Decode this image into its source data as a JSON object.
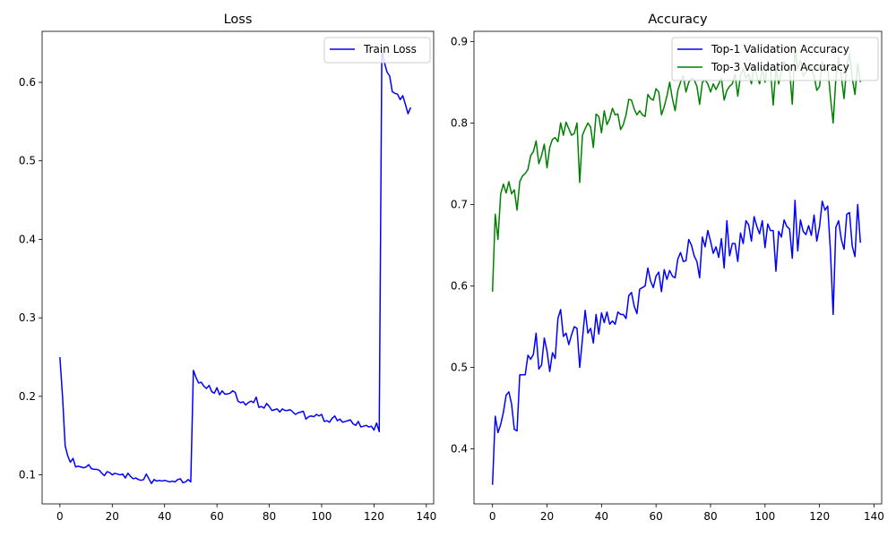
{
  "chart_data": [
    {
      "type": "line",
      "title": "Loss",
      "xlabel": "",
      "ylabel": "",
      "xlim": [
        -6.8,
        142.8
      ],
      "ylim": [
        0.063,
        0.665
      ],
      "xticks": [
        0,
        20,
        40,
        60,
        80,
        100,
        120,
        140
      ],
      "xtick_labels": [
        "0",
        "20",
        "40",
        "60",
        "80",
        "100",
        "120",
        "140"
      ],
      "yticks": [
        0.1,
        0.2,
        0.3,
        0.4,
        0.5,
        0.6
      ],
      "ytick_labels": [
        "0.1",
        "0.2",
        "0.3",
        "0.4",
        "0.5",
        "0.6"
      ],
      "grid": false,
      "legend_placement": "top-right",
      "series": [
        {
          "name": "Train Loss",
          "color": "#0000ff",
          "values": [
            0.25,
            0.2,
            0.137,
            0.124,
            0.116,
            0.121,
            0.11,
            0.111,
            0.11,
            0.109,
            0.11,
            0.113,
            0.108,
            0.107,
            0.107,
            0.106,
            0.102,
            0.099,
            0.104,
            0.103,
            0.1,
            0.102,
            0.101,
            0.1,
            0.101,
            0.096,
            0.102,
            0.098,
            0.095,
            0.096,
            0.094,
            0.093,
            0.094,
            0.101,
            0.095,
            0.089,
            0.094,
            0.092,
            0.093,
            0.092,
            0.093,
            0.092,
            0.091,
            0.092,
            0.091,
            0.094,
            0.095,
            0.09,
            0.091,
            0.094,
            0.091,
            0.233,
            0.224,
            0.217,
            0.218,
            0.213,
            0.21,
            0.214,
            0.206,
            0.204,
            0.211,
            0.202,
            0.207,
            0.203,
            0.203,
            0.204,
            0.207,
            0.205,
            0.194,
            0.192,
            0.193,
            0.189,
            0.192,
            0.194,
            0.192,
            0.199,
            0.186,
            0.187,
            0.185,
            0.191,
            0.187,
            0.182,
            0.183,
            0.184,
            0.18,
            0.184,
            0.182,
            0.182,
            0.183,
            0.18,
            0.177,
            0.179,
            0.18,
            0.181,
            0.171,
            0.174,
            0.175,
            0.174,
            0.177,
            0.175,
            0.177,
            0.168,
            0.169,
            0.167,
            0.172,
            0.175,
            0.169,
            0.171,
            0.167,
            0.168,
            0.169,
            0.17,
            0.165,
            0.163,
            0.168,
            0.161,
            0.162,
            0.163,
            0.161,
            0.162,
            0.157,
            0.166,
            0.155,
            0.64,
            0.625,
            0.613,
            0.608,
            0.588,
            0.586,
            0.585,
            0.578,
            0.583,
            0.572,
            0.56,
            0.568
          ]
        }
      ]
    },
    {
      "type": "line",
      "title": "Accuracy",
      "xlabel": "",
      "ylabel": "",
      "xlim": [
        -6.8,
        142.8
      ],
      "ylim": [
        0.3325,
        0.9125
      ],
      "xticks": [
        0,
        20,
        40,
        60,
        80,
        100,
        120,
        140
      ],
      "xtick_labels": [
        "0",
        "20",
        "40",
        "60",
        "80",
        "100",
        "120",
        "140"
      ],
      "yticks": [
        0.4,
        0.5,
        0.6,
        0.7,
        0.8,
        0.9
      ],
      "ytick_labels": [
        "0.4",
        "0.5",
        "0.6",
        "0.7",
        "0.8",
        "0.9"
      ],
      "grid": false,
      "legend_placement": "top-right",
      "series": [
        {
          "name": "Top-1 Validation Accuracy",
          "color": "#0000ff",
          "values": [
            0.356,
            0.44,
            0.42,
            0.43,
            0.445,
            0.466,
            0.47,
            0.455,
            0.424,
            0.422,
            0.491,
            0.491,
            0.491,
            0.515,
            0.51,
            0.516,
            0.542,
            0.498,
            0.503,
            0.536,
            0.52,
            0.495,
            0.518,
            0.511,
            0.56,
            0.571,
            0.538,
            0.542,
            0.528,
            0.54,
            0.55,
            0.548,
            0.5,
            0.535,
            0.57,
            0.542,
            0.548,
            0.53,
            0.565,
            0.541,
            0.567,
            0.555,
            0.568,
            0.553,
            0.557,
            0.553,
            0.568,
            0.565,
            0.565,
            0.56,
            0.588,
            0.592,
            0.575,
            0.566,
            0.596,
            0.598,
            0.6,
            0.622,
            0.606,
            0.598,
            0.612,
            0.617,
            0.593,
            0.62,
            0.608,
            0.619,
            0.612,
            0.61,
            0.633,
            0.641,
            0.63,
            0.631,
            0.657,
            0.65,
            0.637,
            0.63,
            0.61,
            0.66,
            0.648,
            0.668,
            0.655,
            0.64,
            0.648,
            0.635,
            0.658,
            0.622,
            0.68,
            0.637,
            0.652,
            0.652,
            0.63,
            0.665,
            0.652,
            0.68,
            0.675,
            0.655,
            0.685,
            0.673,
            0.664,
            0.68,
            0.647,
            0.676,
            0.668,
            0.668,
            0.618,
            0.667,
            0.66,
            0.681,
            0.673,
            0.67,
            0.634,
            0.705,
            0.643,
            0.681,
            0.667,
            0.663,
            0.674,
            0.662,
            0.687,
            0.655,
            0.673,
            0.704,
            0.693,
            0.698,
            0.643,
            0.565,
            0.672,
            0.68,
            0.657,
            0.645,
            0.688,
            0.69,
            0.649,
            0.636,
            0.7,
            0.653
          ]
        },
        {
          "name": "Top-3 Validation Accuracy",
          "color": "#008000",
          "values": [
            0.593,
            0.688,
            0.657,
            0.713,
            0.725,
            0.714,
            0.728,
            0.713,
            0.718,
            0.693,
            0.728,
            0.735,
            0.738,
            0.743,
            0.76,
            0.765,
            0.778,
            0.75,
            0.76,
            0.774,
            0.745,
            0.77,
            0.78,
            0.782,
            0.777,
            0.8,
            0.785,
            0.801,
            0.793,
            0.785,
            0.787,
            0.8,
            0.727,
            0.785,
            0.793,
            0.8,
            0.795,
            0.77,
            0.811,
            0.808,
            0.788,
            0.815,
            0.798,
            0.805,
            0.818,
            0.81,
            0.811,
            0.792,
            0.798,
            0.81,
            0.829,
            0.828,
            0.817,
            0.81,
            0.815,
            0.81,
            0.808,
            0.835,
            0.83,
            0.828,
            0.842,
            0.838,
            0.81,
            0.82,
            0.833,
            0.85,
            0.83,
            0.815,
            0.84,
            0.85,
            0.858,
            0.838,
            0.85,
            0.855,
            0.853,
            0.845,
            0.823,
            0.85,
            0.853,
            0.848,
            0.838,
            0.848,
            0.841,
            0.848,
            0.855,
            0.828,
            0.84,
            0.845,
            0.848,
            0.86,
            0.833,
            0.858,
            0.866,
            0.855,
            0.86,
            0.848,
            0.87,
            0.858,
            0.848,
            0.866,
            0.85,
            0.877,
            0.865,
            0.822,
            0.866,
            0.848,
            0.862,
            0.875,
            0.87,
            0.866,
            0.823,
            0.89,
            0.867,
            0.877,
            0.858,
            0.862,
            0.872,
            0.866,
            0.858,
            0.84,
            0.845,
            0.875,
            0.863,
            0.87,
            0.832,
            0.8,
            0.855,
            0.88,
            0.857,
            0.83,
            0.87,
            0.885,
            0.855,
            0.835,
            0.873,
            0.85
          ]
        }
      ]
    }
  ]
}
